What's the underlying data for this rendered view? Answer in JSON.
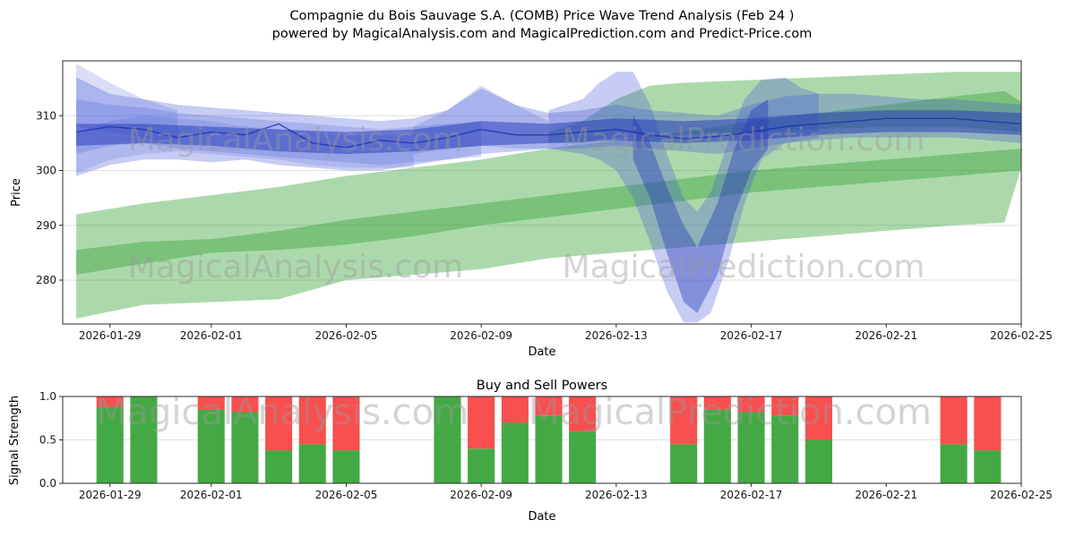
{
  "figure": {
    "title_line1": "Compagnie du Bois Sauvage S.A. (COMB) Price Wave Trend Analysis (Feb 24 )",
    "title_line2": "powered by MagicalAnalysis.com and MagicalPrediction.com and Predict-Price.com"
  },
  "watermarks": {
    "left_text": "MagicalAnalysis.com",
    "right_text": "MagicalPrediction.com",
    "color": "#9a9a9a"
  },
  "chart_data": [
    {
      "type": "area",
      "title": "Compagnie du Bois Sauvage S.A. (COMB) Price Wave Trend Analysis (Feb 24 )",
      "subtitle": "powered by MagicalAnalysis.com and MagicalPrediction.com and Predict-Price.com",
      "xlabel": "Date",
      "ylabel": "Price",
      "ylim": [
        272,
        320
      ],
      "yticks": [
        "280",
        "290",
        "300",
        "310"
      ],
      "xticks": [
        "2026-01-29",
        "2026-02-01",
        "2026-02-05",
        "2026-02-09",
        "2026-02-13",
        "2026-02-17",
        "2026-02-21",
        "2026-02-25"
      ],
      "x_base_date": "2026-01-28",
      "xlim_days": [
        -0.4,
        28.0
      ],
      "grid": true,
      "colors": {
        "green_band": "#2fa02f",
        "blue_band": "#4156d8",
        "blue_dark": "#2438b8"
      },
      "bands": [
        {
          "name": "green-fan",
          "color": "#2fa02f",
          "opacity": 0.4,
          "points": [
            [
              0,
              273,
              292
            ],
            [
              2,
              275.5,
              294
            ],
            [
              4,
              276,
              295.5
            ],
            [
              6,
              276.5,
              297
            ],
            [
              8,
              280,
              299
            ],
            [
              10,
              281,
              300.5
            ],
            [
              12,
              282,
              302
            ],
            [
              14,
              284,
              304
            ],
            [
              16,
              285,
              305.5
            ],
            [
              18,
              286,
              307
            ],
            [
              20,
              287,
              309
            ],
            [
              22,
              288,
              310.5
            ],
            [
              24,
              289,
              312
            ],
            [
              26,
              290,
              313.5
            ],
            [
              27.5,
              290.5,
              314.5
            ],
            [
              28,
              300.5,
              312.5
            ]
          ]
        },
        {
          "name": "green-mid",
          "color": "#2fa02f",
          "opacity": 0.4,
          "points": [
            [
              0,
              281,
              285.5
            ],
            [
              2,
              283,
              287
            ],
            [
              4,
              285,
              287.5
            ],
            [
              6,
              285.5,
              289
            ],
            [
              8,
              286.5,
              291
            ],
            [
              10,
              288,
              292.5
            ],
            [
              12,
              290,
              294
            ],
            [
              14,
              291.5,
              295.5
            ],
            [
              16,
              293,
              297
            ],
            [
              18,
              294.5,
              298.5
            ],
            [
              20,
              296,
              300
            ],
            [
              22,
              297,
              301
            ],
            [
              24,
              298,
              302
            ],
            [
              26,
              299,
              303
            ],
            [
              28,
              300,
              304
            ]
          ]
        },
        {
          "name": "green-upper",
          "color": "#2fa02f",
          "opacity": 0.4,
          "points": [
            [
              14,
              305,
              307
            ],
            [
              15,
              305,
              309
            ],
            [
              16,
              306,
              313
            ],
            [
              17,
              306,
              315.5
            ],
            [
              18,
              306.5,
              316
            ],
            [
              20,
              307,
              316.5
            ],
            [
              22,
              307.5,
              317
            ],
            [
              24,
              308,
              317.5
            ],
            [
              26,
              308,
              318
            ],
            [
              28,
              307,
              318
            ]
          ]
        },
        {
          "name": "blue-top-left",
          "color": "#4156d8",
          "opacity": 0.2,
          "points": [
            [
              0,
              308,
              319.5
            ],
            [
              1,
              307,
              316
            ],
            [
              2,
              306,
              313
            ],
            [
              3,
              305,
              311
            ]
          ]
        },
        {
          "name": "blue-main",
          "color": "#4156d8",
          "opacity": 0.3,
          "points": [
            [
              0,
              299,
              317
            ],
            [
              1,
              301,
              314
            ],
            [
              2,
              302,
              313
            ],
            [
              3,
              302,
              312
            ],
            [
              4,
              301.5,
              311.5
            ],
            [
              5,
              302,
              311
            ],
            [
              6,
              301,
              310.5
            ],
            [
              7,
              300.5,
              310
            ],
            [
              8,
              300,
              309.5
            ],
            [
              9,
              300,
              309
            ],
            [
              10,
              301,
              309.5
            ],
            [
              11,
              302,
              311
            ],
            [
              12,
              303,
              315
            ],
            [
              13,
              303.5,
              312
            ],
            [
              14,
              304,
              310.5
            ],
            [
              15,
              304,
              311
            ],
            [
              16,
              304.5,
              312
            ],
            [
              17,
              304,
              311
            ],
            [
              18,
              303.5,
              310.5
            ],
            [
              19,
              303,
              310
            ],
            [
              20,
              304,
              312
            ],
            [
              21,
              305,
              313.5
            ],
            [
              22,
              305.5,
              314
            ],
            [
              23,
              306,
              314
            ],
            [
              24,
              306,
              313.5
            ],
            [
              25,
              306,
              313
            ],
            [
              26,
              306,
              313
            ],
            [
              27,
              305.5,
              312.5
            ],
            [
              28,
              305,
              312
            ]
          ]
        },
        {
          "name": "blue-fuzzy-1",
          "color": "#4156d8",
          "opacity": 0.22,
          "points": [
            [
              0,
              303,
              313
            ],
            [
              1,
              304.5,
              312
            ],
            [
              2,
              305,
              311.5
            ],
            [
              3,
              304,
              310.5
            ],
            [
              4,
              303.5,
              310
            ],
            [
              5,
              303,
              309.5
            ],
            [
              6,
              302.5,
              309
            ],
            [
              7,
              302,
              308.5
            ],
            [
              8,
              301.5,
              308
            ],
            [
              9,
              301,
              307.5
            ],
            [
              10,
              301.5,
              308
            ],
            [
              11,
              302,
              308.5
            ],
            [
              12,
              302.5,
              309
            ]
          ]
        },
        {
          "name": "blue-fuzzy-2",
          "color": "#4156d8",
          "opacity": 0.18,
          "points": [
            [
              0,
              299.5,
              307
            ],
            [
              1,
              302,
              309
            ],
            [
              2,
              303,
              310
            ],
            [
              3,
              303.5,
              309.5
            ],
            [
              4,
              303,
              309
            ],
            [
              5,
              302.5,
              308
            ],
            [
              6,
              302,
              307.5
            ],
            [
              7,
              301,
              307
            ],
            [
              8,
              300.5,
              306.5
            ],
            [
              10,
              300.5,
              306.5
            ]
          ]
        },
        {
          "name": "blue-peak",
          "color": "#4156d8",
          "opacity": 0.22,
          "points": [
            [
              10,
              303,
              308
            ],
            [
              11,
              304,
              311
            ],
            [
              12,
              304.5,
              315.5
            ],
            [
              13,
              304,
              312
            ],
            [
              14,
              304,
              309
            ]
          ]
        },
        {
          "name": "blue-dip",
          "color": "#4156d8",
          "opacity": 0.3,
          "points": [
            [
              14,
              304,
              311
            ],
            [
              15,
              303,
              313
            ],
            [
              15.5,
              302,
              316
            ],
            [
              16,
              300,
              318
            ],
            [
              16.5,
              295,
              318
            ],
            [
              17,
              287,
              312
            ],
            [
              17.5,
              278,
              303
            ],
            [
              18,
              272.3,
              295
            ],
            [
              18.4,
              272.3,
              292.5
            ],
            [
              18.8,
              274,
              296
            ],
            [
              19.3,
              283,
              305
            ],
            [
              19.8,
              294,
              313
            ],
            [
              20.3,
              302,
              316.5
            ],
            [
              21,
              305,
              317
            ],
            [
              21.5,
              305.5,
              315
            ],
            [
              22,
              306,
              314
            ]
          ]
        },
        {
          "name": "blue-dip-core",
          "color": "#2438b8",
          "opacity": 0.4,
          "points": [
            [
              16.5,
              302,
              310
            ],
            [
              17,
              295,
              305
            ],
            [
              17.5,
              285,
              297
            ],
            [
              18,
              276,
              290
            ],
            [
              18.4,
              274,
              286
            ],
            [
              19,
              281,
              294
            ],
            [
              19.5,
              292,
              304
            ],
            [
              20,
              300,
              311
            ],
            [
              20.5,
              304,
              313
            ]
          ]
        },
        {
          "name": "blue-core",
          "color": "#2438b8",
          "opacity": 0.5,
          "points": [
            [
              0,
              304.5,
              308.5
            ],
            [
              2,
              305,
              308.5
            ],
            [
              4,
              304.5,
              308
            ],
            [
              6,
              303.5,
              307.5
            ],
            [
              8,
              303,
              307
            ],
            [
              10,
              303.5,
              307.5
            ],
            [
              12,
              304.5,
              309
            ],
            [
              14,
              305,
              308.5
            ],
            [
              16,
              305.5,
              309.5
            ],
            [
              18,
              305,
              309
            ],
            [
              20,
              305.5,
              309.5
            ],
            [
              22,
              306.5,
              310.5
            ],
            [
              24,
              307,
              311
            ],
            [
              26,
              307,
              311
            ],
            [
              28,
              306.5,
              310.5
            ]
          ]
        }
      ],
      "lines": [
        {
          "name": "blue-trend",
          "color": "#1d2fae",
          "opacity": 0.8,
          "width": 1.4,
          "points": [
            [
              0,
              307
            ],
            [
              1,
              308
            ],
            [
              2,
              307.5
            ],
            [
              3,
              306
            ],
            [
              4,
              307
            ],
            [
              5,
              306.5
            ],
            [
              6,
              308.5
            ],
            [
              7,
              305
            ],
            [
              8,
              304.2
            ],
            [
              9,
              305.5
            ],
            [
              10,
              305
            ],
            [
              11,
              306
            ],
            [
              12,
              307.5
            ],
            [
              13,
              306.5
            ],
            [
              14,
              306.5
            ],
            [
              15,
              307
            ],
            [
              16,
              307.5
            ],
            [
              17,
              306.5
            ],
            [
              18,
              305.8
            ],
            [
              19,
              306.2
            ],
            [
              20,
              307
            ],
            [
              21,
              308
            ],
            [
              22,
              308.5
            ],
            [
              23,
              309
            ],
            [
              24,
              309.5
            ],
            [
              25,
              309.5
            ],
            [
              26,
              309.5
            ],
            [
              27,
              309
            ],
            [
              28,
              308.5
            ]
          ]
        }
      ]
    },
    {
      "type": "bar",
      "stacked": true,
      "title": "Buy and Sell Powers",
      "xlabel": "Date",
      "ylabel": "Signal Strength",
      "ylim": [
        0,
        1
      ],
      "yticks": [
        "0.0",
        "0.5",
        "1.0"
      ],
      "xticks": [
        "2026-01-29",
        "2026-02-01",
        "2026-02-05",
        "2026-02-09",
        "2026-02-13",
        "2026-02-17",
        "2026-02-21",
        "2026-02-25"
      ],
      "x_base_date": "2026-01-28",
      "xlim_days": [
        -0.4,
        28.0
      ],
      "bar_width_days": 0.8,
      "categories": [
        "2026-01-29",
        "2026-01-30",
        "2026-02-01",
        "2026-02-02",
        "2026-02-03",
        "2026-02-04",
        "2026-02-05",
        "2026-02-08",
        "2026-02-09",
        "2026-02-10",
        "2026-02-11",
        "2026-02-12",
        "2026-02-15",
        "2026-02-16",
        "2026-02-17",
        "2026-02-18",
        "2026-02-19",
        "2026-02-23",
        "2026-02-24"
      ],
      "series": [
        {
          "name": "Buy",
          "color": "#44a944",
          "values": [
            0.88,
            1.0,
            0.85,
            0.82,
            0.38,
            0.45,
            0.38,
            1.0,
            0.4,
            0.7,
            0.78,
            0.6,
            0.45,
            0.85,
            0.82,
            0.78,
            0.5,
            0.45,
            0.38
          ]
        },
        {
          "name": "Sell",
          "color": "#f84f4f",
          "values": [
            0.12,
            0.0,
            0.15,
            0.18,
            0.62,
            0.55,
            0.62,
            0.0,
            0.6,
            0.3,
            0.22,
            0.4,
            0.55,
            0.15,
            0.18,
            0.22,
            0.5,
            0.55,
            0.62
          ]
        }
      ]
    }
  ]
}
